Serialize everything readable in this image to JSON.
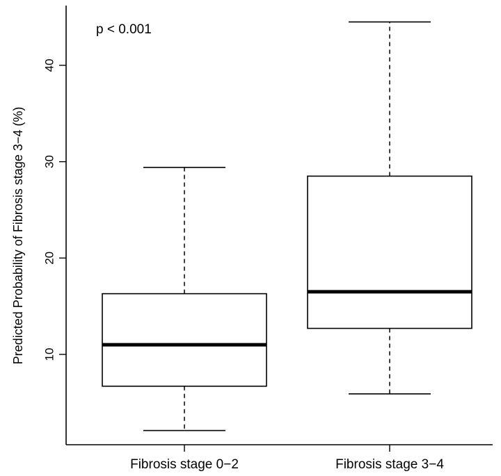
{
  "chart_data": {
    "type": "boxplot",
    "title": "",
    "xlabel": "",
    "ylabel": "Predicted Probability of Fibrosis stage 3−4 (%)",
    "ylim": [
      0,
      45
    ],
    "yticks": [
      "10",
      "20",
      "30",
      "40"
    ],
    "grid": false,
    "annotation": "p < 0.001",
    "categories": [
      "Fibrosis stage 0−2",
      "Fibrosis stage 3−4"
    ],
    "boxes": [
      {
        "whisker_low": 2.1,
        "q1": 6.7,
        "median": 11.0,
        "q3": 16.3,
        "whisker_high": 29.4
      },
      {
        "whisker_low": 5.9,
        "q1": 12.7,
        "median": 16.5,
        "q3": 28.5,
        "whisker_high": 44.5
      }
    ]
  }
}
